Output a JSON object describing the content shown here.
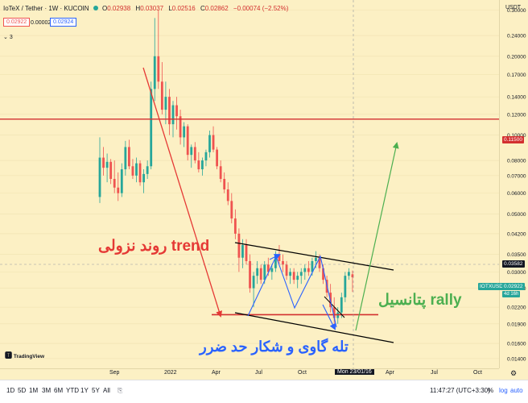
{
  "header": {
    "symbol": "IoTeX / Tether · 1W · KUCOIN",
    "ohlc_o_label": "O",
    "ohlc_o": "0.02938",
    "ohlc_h_label": "H",
    "ohlc_h": "0.03037",
    "ohlc_l_label": "L",
    "ohlc_l": "0.02516",
    "ohlc_c_label": "C",
    "ohlc_c": "0.02862",
    "change": "−0.00074 (−2.52%)",
    "sell_price": "0.02922",
    "spread": "0.00002",
    "buy_price": "0.02924",
    "indicators_count": "3"
  },
  "price_axis": {
    "currency": "USDT",
    "ticks": [
      "0.30000",
      "0.24000",
      "0.20000",
      "0.17000",
      "0.14000",
      "0.12000",
      "0.10000",
      "0.08000",
      "0.07000",
      "0.06000",
      "0.05000",
      "0.04200",
      "0.03500",
      "0.03000",
      "0.02600",
      "0.02200",
      "0.01900",
      "0.01600",
      "0.01400"
    ],
    "tag_resistance": "0.11500",
    "tag_crosshair": "0.03582",
    "tag_symbol": "IOTXUSDT",
    "tag_last": "0.02922",
    "tag_countdown": "4d 16h"
  },
  "time_axis": {
    "ticks": [
      "Sep",
      "2022",
      "Apr",
      "Jul",
      "Oct",
      "Apr",
      "Jul",
      "Oct"
    ],
    "crosshair_date": "Mon 23/01/16"
  },
  "annotations": {
    "downtrend": "روند نزولی trend",
    "bear_trap": "تله گاوی و شکار حد ضرر",
    "rally": "پتانسیل rally"
  },
  "watermark": "TradingView",
  "bottom_bar": {
    "ranges": [
      "1D",
      "5D",
      "1M",
      "3M",
      "6M",
      "YTD",
      "1Y",
      "5Y",
      "All"
    ],
    "time": "11:47:27 (UTC+3:30)",
    "pct": "%",
    "log": "log",
    "auto": "auto"
  },
  "colors": {
    "background": "#fcf0c4",
    "up_candle": "#26a69a",
    "down_candle": "#ef5350",
    "resistance_line": "#d32f2f",
    "downtrend_arrow": "#e53935",
    "pattern_lines": "#2962ff",
    "rally_arrow": "#4caf50",
    "channel_lines": "#000000"
  },
  "chart_data": {
    "type": "candlestick",
    "title": "IoTeX / Tether · 1W · KUCOIN",
    "scale": "log",
    "ylim": [
      0.0135,
      0.31
    ],
    "candles_ohlc": [
      [
        0.058,
        0.098,
        0.055,
        0.082
      ],
      [
        0.082,
        0.09,
        0.07,
        0.075
      ],
      [
        0.075,
        0.085,
        0.066,
        0.079
      ],
      [
        0.079,
        0.081,
        0.065,
        0.068
      ],
      [
        0.068,
        0.08,
        0.06,
        0.063
      ],
      [
        0.063,
        0.072,
        0.056,
        0.06
      ],
      [
        0.06,
        0.078,
        0.058,
        0.074
      ],
      [
        0.074,
        0.095,
        0.07,
        0.09
      ],
      [
        0.09,
        0.096,
        0.074,
        0.076
      ],
      [
        0.076,
        0.081,
        0.068,
        0.07
      ],
      [
        0.07,
        0.082,
        0.066,
        0.078
      ],
      [
        0.078,
        0.08,
        0.064,
        0.066
      ],
      [
        0.066,
        0.074,
        0.06,
        0.071
      ],
      [
        0.071,
        0.08,
        0.068,
        0.076
      ],
      [
        0.076,
        0.16,
        0.074,
        0.15
      ],
      [
        0.15,
        0.28,
        0.135,
        0.2
      ],
      [
        0.2,
        0.3,
        0.15,
        0.16
      ],
      [
        0.16,
        0.19,
        0.12,
        0.125
      ],
      [
        0.125,
        0.16,
        0.11,
        0.14
      ],
      [
        0.14,
        0.15,
        0.1,
        0.11
      ],
      [
        0.11,
        0.135,
        0.098,
        0.13
      ],
      [
        0.13,
        0.14,
        0.105,
        0.118
      ],
      [
        0.118,
        0.125,
        0.092,
        0.098
      ],
      [
        0.098,
        0.112,
        0.09,
        0.108
      ],
      [
        0.108,
        0.11,
        0.08,
        0.084
      ],
      [
        0.084,
        0.092,
        0.075,
        0.09
      ],
      [
        0.09,
        0.094,
        0.078,
        0.08
      ],
      [
        0.08,
        0.086,
        0.072,
        0.074
      ],
      [
        0.074,
        0.082,
        0.07,
        0.08
      ],
      [
        0.08,
        0.088,
        0.076,
        0.086
      ],
      [
        0.086,
        0.104,
        0.082,
        0.1
      ],
      [
        0.1,
        0.108,
        0.086,
        0.088
      ],
      [
        0.088,
        0.09,
        0.074,
        0.076
      ],
      [
        0.076,
        0.08,
        0.066,
        0.068
      ],
      [
        0.068,
        0.072,
        0.06,
        0.062
      ],
      [
        0.062,
        0.066,
        0.054,
        0.056
      ],
      [
        0.056,
        0.06,
        0.046,
        0.048
      ],
      [
        0.048,
        0.052,
        0.04,
        0.042
      ],
      [
        0.042,
        0.044,
        0.03,
        0.034
      ],
      [
        0.034,
        0.04,
        0.031,
        0.038
      ],
      [
        0.038,
        0.04,
        0.032,
        0.033
      ],
      [
        0.033,
        0.035,
        0.025,
        0.026
      ],
      [
        0.026,
        0.03,
        0.022,
        0.029
      ],
      [
        0.029,
        0.033,
        0.027,
        0.031
      ],
      [
        0.031,
        0.032,
        0.027,
        0.028
      ],
      [
        0.028,
        0.033,
        0.027,
        0.032
      ],
      [
        0.032,
        0.034,
        0.029,
        0.03
      ],
      [
        0.03,
        0.032,
        0.028,
        0.031
      ],
      [
        0.031,
        0.036,
        0.03,
        0.035
      ],
      [
        0.035,
        0.038,
        0.032,
        0.033
      ],
      [
        0.033,
        0.035,
        0.03,
        0.032
      ],
      [
        0.032,
        0.033,
        0.028,
        0.029
      ],
      [
        0.029,
        0.031,
        0.027,
        0.03
      ],
      [
        0.03,
        0.031,
        0.027,
        0.028
      ],
      [
        0.028,
        0.03,
        0.026,
        0.029
      ],
      [
        0.029,
        0.031,
        0.027,
        0.03
      ],
      [
        0.03,
        0.032,
        0.028,
        0.031
      ],
      [
        0.031,
        0.033,
        0.029,
        0.03
      ],
      [
        0.03,
        0.034,
        0.029,
        0.033
      ],
      [
        0.033,
        0.036,
        0.031,
        0.034
      ],
      [
        0.034,
        0.035,
        0.03,
        0.031
      ],
      [
        0.031,
        0.032,
        0.027,
        0.028
      ],
      [
        0.028,
        0.029,
        0.024,
        0.025
      ],
      [
        0.025,
        0.027,
        0.021,
        0.022
      ],
      [
        0.022,
        0.024,
        0.019,
        0.02
      ],
      [
        0.02,
        0.022,
        0.019,
        0.021
      ],
      [
        0.021,
        0.025,
        0.02,
        0.024
      ],
      [
        0.024,
        0.03,
        0.023,
        0.029
      ],
      [
        0.029,
        0.031,
        0.028,
        0.03
      ],
      [
        0.02938,
        0.03037,
        0.02516,
        0.02862
      ]
    ],
    "horizontal_lines": [
      {
        "price": 0.115,
        "color": "#d32f2f"
      },
      {
        "price": 0.0206,
        "color": "#d32f2f"
      }
    ]
  }
}
